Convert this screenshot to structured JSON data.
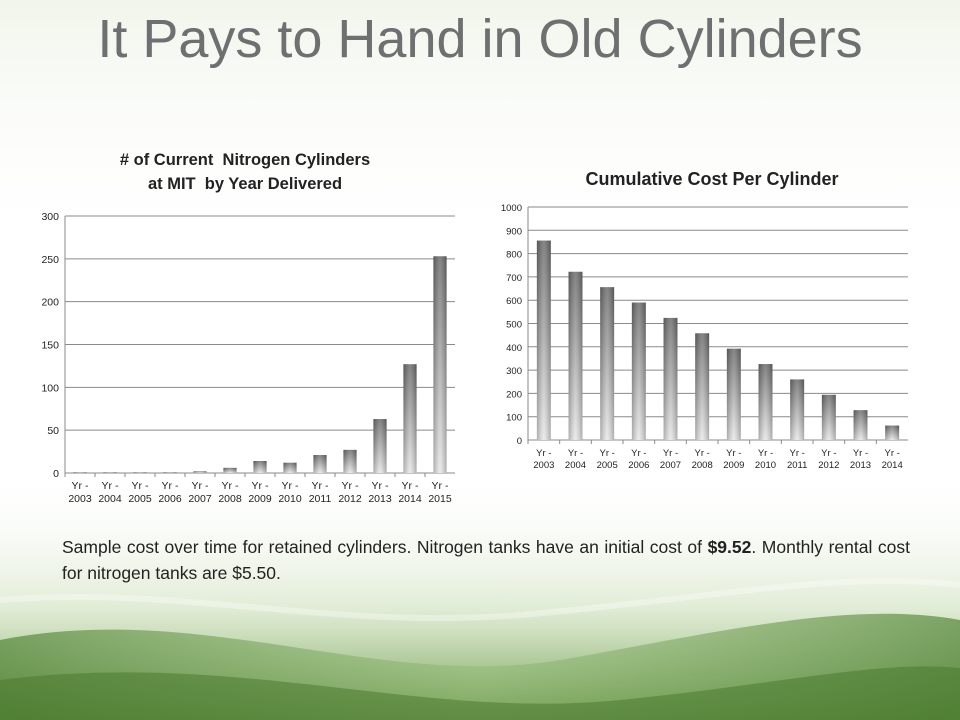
{
  "slide": {
    "title": "It Pays to Hand in Old Cylinders"
  },
  "caption": {
    "part1": "Sample cost over time for retained cylinders. Nitrogen tanks have an initial cost of ",
    "bold_value": "$9.52",
    "part2": ". Monthly rental cost for nitrogen tanks are $5.50."
  },
  "colors": {
    "title": "#6d6f70",
    "bar_dark": "#6f6f6f",
    "bar_light": "#e8e8e8",
    "gridline": "#8a8a8a",
    "background_green": "#6f9c4a"
  },
  "chart_data": [
    {
      "type": "bar",
      "title_lines": [
        "# of Current  Nitrogen Cylinders",
        "at MIT  by Year Delivered"
      ],
      "categories": [
        [
          "Yr -",
          "2003"
        ],
        [
          "Yr -",
          "2004"
        ],
        [
          "Yr -",
          "2005"
        ],
        [
          "Yr -",
          "2006"
        ],
        [
          "Yr -",
          "2007"
        ],
        [
          "Yr -",
          "2008"
        ],
        [
          "Yr -",
          "2009"
        ],
        [
          "Yr -",
          "2010"
        ],
        [
          "Yr -",
          "2011"
        ],
        [
          "Yr -",
          "2012"
        ],
        [
          "Yr -",
          "2013"
        ],
        [
          "Yr -",
          "2014"
        ],
        [
          "Yr -",
          "2015"
        ]
      ],
      "values": [
        1,
        1,
        1,
        1,
        2,
        6,
        14,
        12,
        21,
        27,
        63,
        127,
        253
      ],
      "yticks": [
        "0",
        "50",
        "100",
        "150",
        "200",
        "250",
        "300"
      ],
      "ylim": [
        0,
        300
      ],
      "grid": true
    },
    {
      "type": "bar",
      "title_lines": [
        "Cumulative Cost Per Cylinder"
      ],
      "categories": [
        [
          "Yr -",
          "2003"
        ],
        [
          "Yr -",
          "2004"
        ],
        [
          "Yr -",
          "2005"
        ],
        [
          "Yr -",
          "2006"
        ],
        [
          "Yr -",
          "2007"
        ],
        [
          "Yr -",
          "2008"
        ],
        [
          "Yr -",
          "2009"
        ],
        [
          "Yr -",
          "2010"
        ],
        [
          "Yr -",
          "2011"
        ],
        [
          "Yr -",
          "2012"
        ],
        [
          "Yr -",
          "2013"
        ],
        [
          "Yr -",
          "2014"
        ]
      ],
      "values": [
        856,
        722,
        656,
        590,
        524,
        458,
        392,
        326,
        260,
        194,
        128,
        62
      ],
      "yticks": [
        "0",
        "100",
        "200",
        "300",
        "400",
        "500",
        "600",
        "700",
        "800",
        "900",
        "1000"
      ],
      "ylim": [
        0,
        1000
      ],
      "grid": true
    }
  ]
}
